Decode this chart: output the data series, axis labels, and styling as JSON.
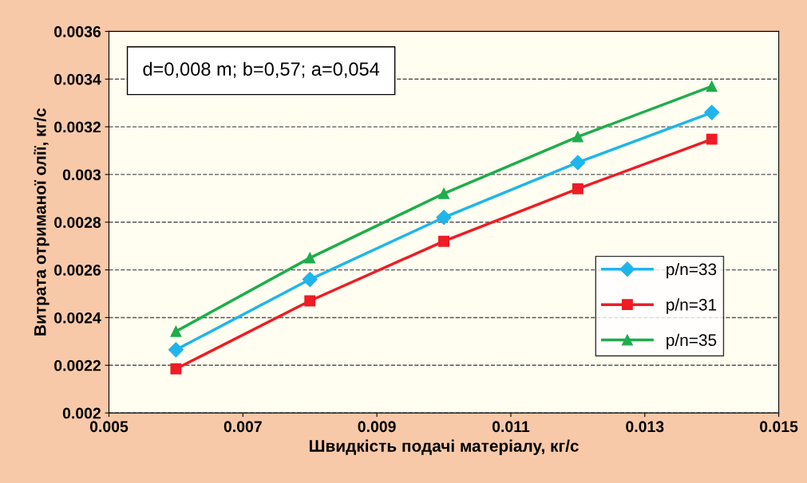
{
  "chart_data": {
    "type": "line",
    "xlabel": "Швидкість подачі матеріалу, кг/с",
    "ylabel": "Витрата отриманої олії, кг/с",
    "x": [
      0.006,
      0.008,
      0.01,
      0.012,
      0.014
    ],
    "series": [
      {
        "name": "p/n=33",
        "color": "#1fb5ec",
        "marker": "diamond",
        "values": [
          0.002265,
          0.00256,
          0.00282,
          0.00305,
          0.00326
        ]
      },
      {
        "name": "p/n=31",
        "color": "#ee1c24",
        "marker": "square",
        "values": [
          0.002185,
          0.00247,
          0.00272,
          0.00294,
          0.003148
        ]
      },
      {
        "name": "p/n=35",
        "color": "#1fad4c",
        "marker": "triangle",
        "values": [
          0.002342,
          0.00265,
          0.00292,
          0.003158,
          0.00337
        ]
      }
    ],
    "xlim": [
      0.005,
      0.015
    ],
    "xticks": [
      0.005,
      0.007,
      0.009,
      0.011,
      0.013,
      0.015
    ],
    "ylim": [
      0.002,
      0.0036
    ],
    "yticks": [
      0.002,
      0.0022,
      0.0024,
      0.0026,
      0.0028,
      0.003,
      0.0032,
      0.0034,
      0.0036
    ],
    "grid": "y",
    "legend": "right",
    "line_style": "solid",
    "annotations": [
      "d=0,008 m; b=0,57; a=0,054"
    ]
  }
}
